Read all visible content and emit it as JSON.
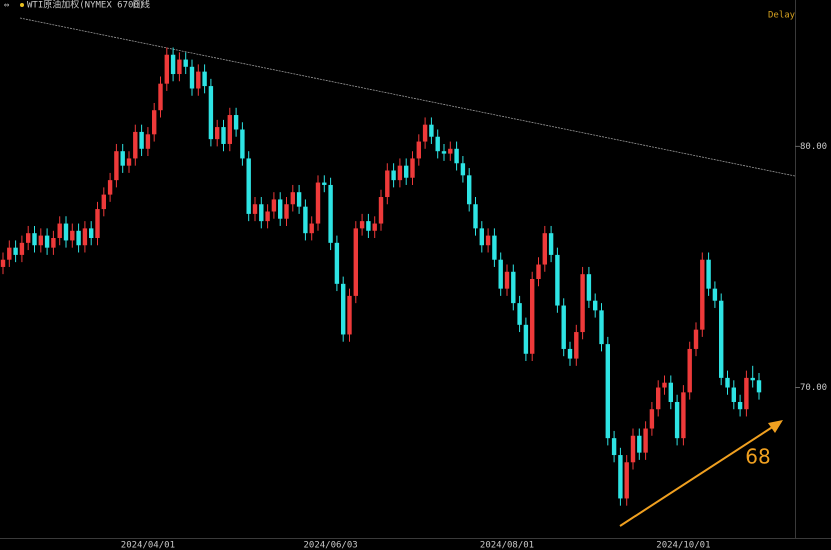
{
  "chart_data": {
    "type": "candlestick",
    "title": "WTI原油加权(NYMEX 6700)",
    "period": "日线",
    "status": "Delay",
    "annotation": "68",
    "up_color": "#ee3a3a",
    "down_color": "#2ee4e4",
    "ylim": [
      63.76,
      86.07
    ],
    "yticks": [
      {
        "value": 70,
        "label": "70.00"
      },
      {
        "value": 80,
        "label": "80.00"
      }
    ],
    "categories": [
      null,
      null,
      null,
      null,
      null,
      null,
      null,
      null,
      null,
      null,
      null,
      null,
      null,
      null,
      null,
      null,
      null,
      null,
      null,
      null,
      null,
      null,
      null,
      "2024/04/01",
      null,
      null,
      null,
      null,
      null,
      null,
      null,
      null,
      null,
      null,
      null,
      null,
      null,
      null,
      null,
      null,
      null,
      null,
      null,
      null,
      null,
      null,
      null,
      null,
      null,
      null,
      null,
      null,
      "2024/06/03",
      null,
      null,
      null,
      null,
      null,
      null,
      null,
      null,
      null,
      null,
      null,
      null,
      null,
      null,
      null,
      null,
      null,
      null,
      null,
      null,
      null,
      null,
      null,
      null,
      null,
      null,
      null,
      "2024/08/01",
      null,
      null,
      null,
      null,
      null,
      null,
      null,
      null,
      null,
      null,
      null,
      null,
      null,
      null,
      null,
      null,
      null,
      null,
      null,
      null,
      null,
      null,
      null,
      null,
      null,
      null,
      null,
      "2024/10/01",
      null,
      null,
      null,
      null,
      null,
      null,
      null,
      null,
      null,
      null,
      null,
      null
    ],
    "ohlc": [
      [
        75.0,
        75.6,
        74.7,
        75.3
      ],
      [
        75.3,
        76.1,
        75.0,
        75.8
      ],
      [
        75.8,
        76.1,
        75.2,
        75.5
      ],
      [
        75.5,
        76.3,
        75.2,
        76.0
      ],
      [
        76.0,
        76.7,
        75.7,
        76.4
      ],
      [
        76.4,
        76.7,
        75.6,
        75.9
      ],
      [
        75.9,
        76.6,
        75.6,
        76.3
      ],
      [
        76.3,
        76.6,
        75.5,
        75.8
      ],
      [
        75.8,
        76.5,
        75.5,
        76.2
      ],
      [
        76.2,
        77.1,
        75.9,
        76.8
      ],
      [
        76.8,
        77.1,
        75.8,
        76.1
      ],
      [
        76.1,
        76.8,
        75.8,
        76.5
      ],
      [
        76.5,
        76.8,
        75.6,
        75.9
      ],
      [
        75.9,
        76.9,
        75.6,
        76.6
      ],
      [
        76.6,
        76.9,
        75.9,
        76.2
      ],
      [
        76.2,
        77.7,
        75.9,
        77.4
      ],
      [
        77.4,
        78.3,
        77.1,
        78.0
      ],
      [
        78.0,
        78.9,
        77.7,
        78.6
      ],
      [
        78.6,
        80.1,
        78.3,
        79.8
      ],
      [
        79.8,
        80.1,
        78.9,
        79.2
      ],
      [
        79.2,
        79.8,
        78.9,
        79.5
      ],
      [
        79.5,
        80.9,
        79.2,
        80.6
      ],
      [
        80.6,
        80.9,
        79.6,
        79.9
      ],
      [
        79.9,
        80.8,
        79.6,
        80.5
      ],
      [
        80.5,
        81.8,
        80.2,
        81.5
      ],
      [
        81.5,
        82.9,
        81.2,
        82.6
      ],
      [
        82.6,
        84.1,
        82.3,
        83.8
      ],
      [
        83.8,
        84.1,
        82.7,
        83.0
      ],
      [
        83.0,
        83.9,
        82.7,
        83.6
      ],
      [
        83.6,
        83.9,
        83.0,
        83.3
      ],
      [
        83.3,
        83.6,
        82.1,
        82.4
      ],
      [
        82.4,
        83.4,
        82.1,
        83.1
      ],
      [
        83.1,
        83.4,
        82.2,
        82.5
      ],
      [
        82.5,
        82.8,
        80.0,
        80.3
      ],
      [
        80.3,
        81.1,
        80.0,
        80.8
      ],
      [
        80.8,
        81.1,
        79.8,
        80.1
      ],
      [
        80.1,
        81.6,
        79.8,
        81.3
      ],
      [
        81.3,
        81.6,
        80.4,
        80.7
      ],
      [
        80.7,
        81.0,
        79.2,
        79.5
      ],
      [
        79.5,
        79.8,
        76.9,
        77.2
      ],
      [
        77.2,
        77.9,
        76.9,
        77.6
      ],
      [
        77.6,
        77.9,
        76.6,
        76.9
      ],
      [
        76.9,
        77.6,
        76.6,
        77.3
      ],
      [
        77.3,
        78.1,
        77.0,
        77.8
      ],
      [
        77.8,
        78.1,
        76.7,
        77.0
      ],
      [
        77.0,
        77.9,
        76.7,
        77.6
      ],
      [
        77.6,
        78.4,
        77.3,
        78.1
      ],
      [
        78.1,
        78.4,
        77.2,
        77.5
      ],
      [
        77.5,
        77.8,
        76.1,
        76.4
      ],
      [
        76.4,
        77.1,
        76.1,
        76.8
      ],
      [
        76.8,
        78.8,
        76.5,
        78.5
      ],
      [
        78.5,
        78.8,
        78.1,
        78.4
      ],
      [
        78.4,
        78.7,
        75.7,
        76.0
      ],
      [
        76.0,
        76.3,
        74.0,
        74.3
      ],
      [
        74.3,
        74.6,
        71.9,
        72.2
      ],
      [
        72.2,
        74.1,
        71.9,
        73.8
      ],
      [
        73.8,
        76.9,
        73.5,
        76.6
      ],
      [
        76.6,
        77.2,
        76.3,
        76.9
      ],
      [
        76.9,
        77.2,
        76.2,
        76.5
      ],
      [
        76.5,
        77.1,
        76.2,
        76.8
      ],
      [
        76.8,
        78.2,
        76.5,
        77.9
      ],
      [
        77.9,
        79.3,
        77.6,
        79.0
      ],
      [
        79.0,
        79.3,
        78.3,
        78.6
      ],
      [
        78.6,
        79.5,
        78.3,
        79.2
      ],
      [
        79.2,
        79.5,
        78.4,
        78.7
      ],
      [
        78.7,
        79.8,
        78.4,
        79.5
      ],
      [
        79.5,
        80.5,
        79.2,
        80.2
      ],
      [
        80.2,
        81.2,
        79.9,
        80.9
      ],
      [
        80.9,
        81.2,
        80.1,
        80.4
      ],
      [
        80.4,
        80.7,
        79.5,
        79.8
      ],
      [
        79.8,
        80.1,
        79.4,
        79.7
      ],
      [
        79.7,
        80.2,
        79.4,
        79.9
      ],
      [
        79.9,
        80.2,
        79.0,
        79.3
      ],
      [
        79.3,
        79.6,
        78.5,
        78.8
      ],
      [
        78.8,
        79.1,
        77.3,
        77.6
      ],
      [
        77.6,
        77.9,
        76.3,
        76.6
      ],
      [
        76.6,
        76.9,
        75.6,
        75.9
      ],
      [
        75.9,
        76.6,
        75.6,
        76.3
      ],
      [
        76.3,
        76.6,
        75.0,
        75.3
      ],
      [
        75.3,
        75.6,
        73.8,
        74.1
      ],
      [
        74.1,
        75.1,
        73.8,
        74.8
      ],
      [
        74.8,
        75.1,
        73.2,
        73.5
      ],
      [
        73.5,
        73.8,
        72.3,
        72.6
      ],
      [
        72.6,
        72.9,
        71.1,
        71.4
      ],
      [
        71.4,
        74.8,
        71.1,
        74.5
      ],
      [
        74.5,
        75.4,
        74.2,
        75.1
      ],
      [
        75.1,
        76.7,
        74.8,
        76.4
      ],
      [
        76.4,
        76.7,
        75.2,
        75.5
      ],
      [
        75.5,
        75.8,
        73.1,
        73.4
      ],
      [
        73.4,
        73.7,
        71.3,
        71.6
      ],
      [
        71.6,
        71.9,
        70.9,
        71.2
      ],
      [
        71.2,
        72.6,
        70.9,
        72.3
      ],
      [
        72.3,
        75.0,
        72.0,
        74.7
      ],
      [
        74.7,
        75.0,
        73.3,
        73.6
      ],
      [
        73.6,
        73.9,
        72.9,
        73.2
      ],
      [
        73.2,
        73.5,
        71.5,
        71.8
      ],
      [
        71.8,
        72.1,
        67.6,
        67.9
      ],
      [
        67.9,
        68.2,
        66.9,
        67.2
      ],
      [
        67.2,
        67.5,
        65.1,
        65.4
      ],
      [
        65.4,
        67.2,
        65.1,
        66.9
      ],
      [
        66.9,
        68.3,
        66.6,
        68.0
      ],
      [
        68.0,
        68.3,
        67.0,
        67.3
      ],
      [
        67.3,
        68.6,
        67.0,
        68.3
      ],
      [
        68.3,
        69.4,
        68.0,
        69.1
      ],
      [
        69.1,
        70.3,
        68.8,
        70.0
      ],
      [
        70.0,
        70.5,
        69.7,
        70.2
      ],
      [
        70.2,
        70.5,
        69.1,
        69.4
      ],
      [
        69.4,
        69.7,
        67.6,
        67.9
      ],
      [
        67.9,
        70.1,
        67.6,
        69.8
      ],
      [
        69.8,
        71.9,
        69.5,
        71.6
      ],
      [
        71.6,
        72.7,
        71.3,
        72.4
      ],
      [
        72.4,
        75.6,
        72.1,
        75.3
      ],
      [
        75.3,
        75.6,
        73.8,
        74.1
      ],
      [
        74.1,
        74.4,
        73.3,
        73.6
      ],
      [
        73.6,
        73.9,
        70.1,
        70.4
      ],
      [
        70.4,
        70.7,
        69.7,
        70.0
      ],
      [
        70.0,
        70.3,
        69.1,
        69.4
      ],
      [
        69.4,
        69.7,
        68.8,
        69.1
      ],
      [
        69.1,
        70.7,
        68.8,
        70.4
      ],
      [
        70.4,
        70.9,
        70.0,
        70.3
      ],
      [
        70.3,
        70.6,
        69.5,
        69.8
      ]
    ]
  }
}
